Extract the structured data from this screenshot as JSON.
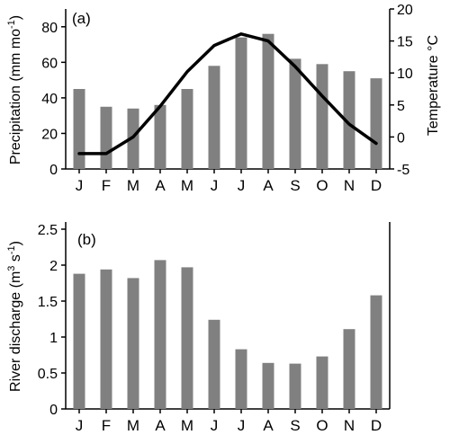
{
  "chart_data": [
    {
      "type": "bar",
      "panel_label": "(a)",
      "categories": [
        "J",
        "F",
        "M",
        "A",
        "M",
        "J",
        "J",
        "A",
        "S",
        "O",
        "N",
        "D"
      ],
      "ylabel": "Precipitation (mm mo",
      "ylabel_sup": "-1",
      "ylabel_end": ")",
      "ylim": [
        0,
        90
      ],
      "yticks": [
        0,
        20,
        40,
        60,
        80
      ],
      "bar_color": "#808080",
      "series": [
        {
          "type": "bar",
          "axis": "left",
          "values": [
            45,
            35,
            34,
            36,
            45,
            58,
            74,
            76,
            62,
            59,
            55,
            51
          ]
        },
        {
          "type": "line",
          "axis": "right",
          "color": "#000000",
          "values": [
            -2.6,
            -2.6,
            0,
            4.8,
            10.2,
            14.3,
            16.1,
            15,
            11,
            6.4,
            2,
            -1
          ]
        }
      ],
      "y2label": "Temperature ",
      "y2label_unit": "°C",
      "y2lim": [
        -5,
        20
      ],
      "y2ticks": [
        -5,
        0,
        5,
        10,
        15,
        20
      ]
    },
    {
      "type": "bar",
      "panel_label": "(b)",
      "categories": [
        "J",
        "F",
        "M",
        "A",
        "M",
        "J",
        "J",
        "A",
        "S",
        "O",
        "N",
        "D"
      ],
      "ylabel": "River discharge (m",
      "ylabel_sup1": "3",
      "ylabel_mid": " s",
      "ylabel_sup2": "-1",
      "ylabel_end": ")",
      "ylim": [
        0,
        2.5
      ],
      "yticks": [
        0,
        0.5,
        1,
        1.5,
        2,
        2.5
      ],
      "bar_color": "#808080",
      "values": [
        1.88,
        1.94,
        1.82,
        2.07,
        1.97,
        1.24,
        0.83,
        0.64,
        0.63,
        0.73,
        1.11,
        1.58
      ]
    }
  ]
}
